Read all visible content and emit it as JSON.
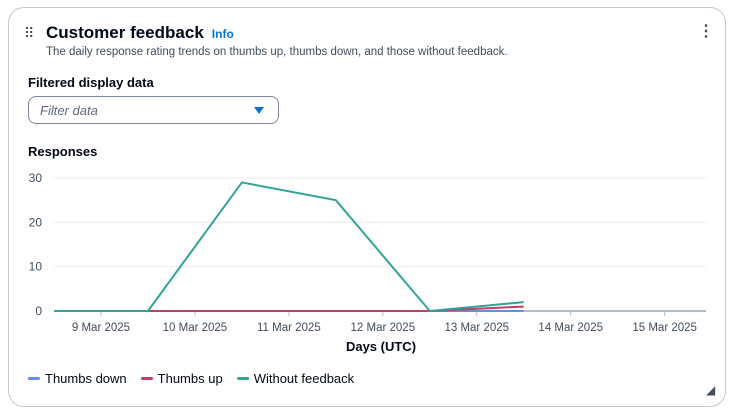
{
  "header": {
    "title": "Customer feedback",
    "info": "Info",
    "description": "The daily response rating trends on thumbs up, thumbs down, and those without feedback."
  },
  "filter": {
    "label": "Filtered display data",
    "placeholder": "Filter data"
  },
  "chart_data": {
    "type": "line",
    "title": "Responses",
    "xlabel": "Days (UTC)",
    "ylabel": "",
    "x": [
      8.5,
      9.5,
      10.5,
      11.5,
      12.5,
      13.5
    ],
    "xticks": [
      {
        "v": 9,
        "label": "9 Mar 2025"
      },
      {
        "v": 10,
        "label": "10 Mar 2025"
      },
      {
        "v": 11,
        "label": "11 Mar 2025"
      },
      {
        "v": 12,
        "label": "12 Mar 2025"
      },
      {
        "v": 13,
        "label": "13 Mar 2025"
      },
      {
        "v": 14,
        "label": "14 Mar 2025"
      },
      {
        "v": 15,
        "label": "15 Mar 2025"
      }
    ],
    "xlim": [
      8.5,
      15.44
    ],
    "yticks": [
      0,
      10,
      20,
      30
    ],
    "ylim": [
      0,
      30
    ],
    "grid": true,
    "series": [
      {
        "name": "Thumbs down",
        "color": "#688ae8",
        "values": [
          0,
          0,
          0,
          0,
          0,
          0
        ]
      },
      {
        "name": "Thumbs up",
        "color": "#c33d69",
        "values": [
          0,
          0,
          0,
          0,
          0,
          1
        ]
      },
      {
        "name": "Without feedback",
        "color": "#2ea597",
        "values": [
          0,
          0,
          29,
          25,
          0,
          2
        ]
      }
    ],
    "legend": "bottom-left"
  }
}
